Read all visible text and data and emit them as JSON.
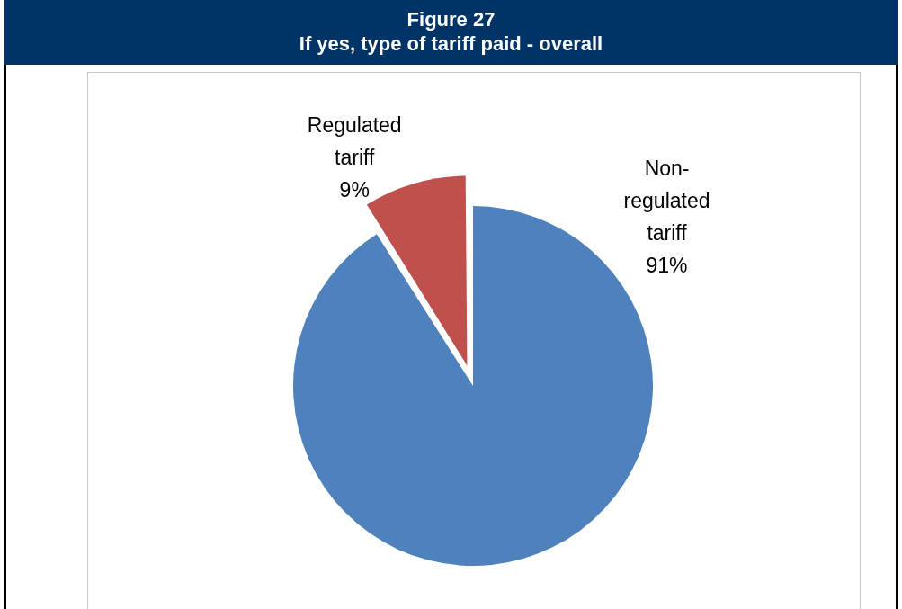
{
  "chart_data": {
    "type": "pie",
    "title": "Figure 27",
    "subtitle": "If yes, type of tariff paid - overall",
    "categories": [
      "Non-regulated tariff",
      "Regulated tariff"
    ],
    "values": [
      91,
      9
    ],
    "colors": [
      "#4f81bd",
      "#c0504d"
    ],
    "value_labels": [
      "91%",
      "9%"
    ],
    "legend": false
  }
}
